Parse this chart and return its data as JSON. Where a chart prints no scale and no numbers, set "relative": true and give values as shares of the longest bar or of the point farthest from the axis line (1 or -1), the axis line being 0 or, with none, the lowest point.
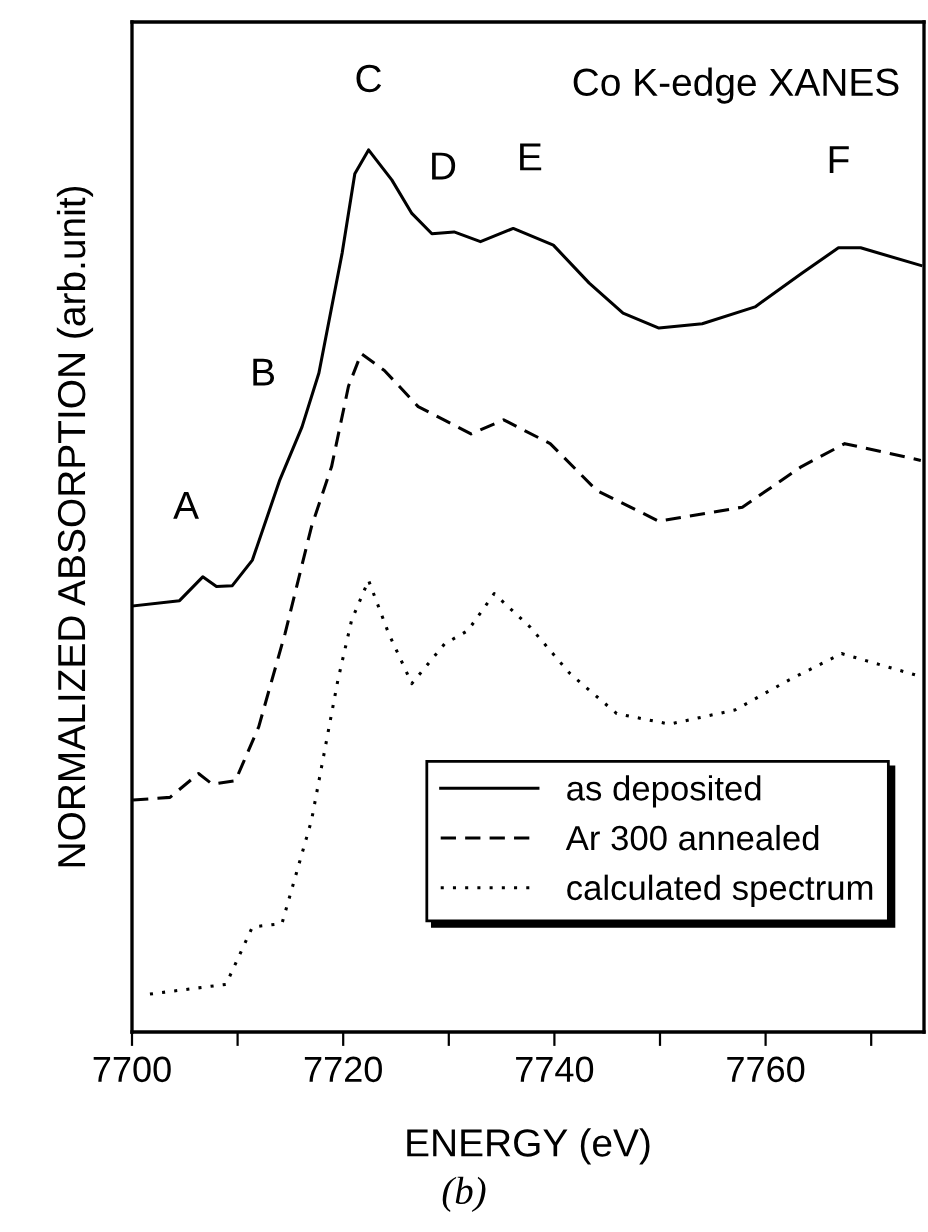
{
  "chart_data": {
    "type": "line",
    "relative": true,
    "xlabel": "ENERGY (eV)",
    "ylabel": "NORMALIZED ABSORPTION (arb.unit)",
    "xlim": [
      7700,
      7775
    ],
    "xticks": [
      7700,
      {
        "value": 7710,
        "label": null
      },
      7720,
      {
        "value": 7730,
        "label": null
      },
      7740,
      {
        "value": 7750,
        "label": null
      },
      7760,
      {
        "value": 7770,
        "label": null
      }
    ],
    "tick_labels": "x",
    "grid": false,
    "legend": "bottom right",
    "marker": "none",
    "series": [
      {
        "name": "as deposited",
        "color": "#000000",
        "line_style": "solid",
        "x": [
          7700.1,
          7704.5,
          7706.7,
          7708.0,
          7709.5,
          7711.4,
          7714.0,
          7716.1,
          7717.7,
          7719.9,
          7721.1,
          7722.4,
          7724.6,
          7726.5,
          7728.4,
          7730.5,
          7733.0,
          7736.1,
          7739.9,
          7743.3,
          7746.5,
          7749.9,
          7754.0,
          7759.0,
          7763.4,
          7766.9,
          7769.0,
          7774.7
        ],
        "values": [
          0.483,
          0.489,
          0.516,
          0.505,
          0.506,
          0.535,
          0.626,
          0.686,
          0.747,
          0.883,
          0.973,
          1.0,
          0.966,
          0.928,
          0.905,
          0.907,
          0.896,
          0.911,
          0.892,
          0.849,
          0.815,
          0.798,
          0.803,
          0.822,
          0.86,
          0.889,
          0.889,
          0.869
        ]
      },
      {
        "name": "Ar 300 annealed",
        "color": "#000000",
        "line_style": "dashed",
        "x": [
          7700.1,
          7703.6,
          7706.3,
          7707.6,
          7709.8,
          7712.0,
          7714.5,
          7717.0,
          7718.9,
          7720.5,
          7721.7,
          7723.9,
          7727.1,
          7732.1,
          7735.2,
          7739.6,
          7744.0,
          7749.9,
          7757.8,
          7763.4,
          7767.5,
          7774.7
        ],
        "values": [
          0.263,
          0.266,
          0.293,
          0.281,
          0.285,
          0.346,
          0.452,
          0.573,
          0.641,
          0.732,
          0.769,
          0.75,
          0.709,
          0.678,
          0.694,
          0.667,
          0.614,
          0.579,
          0.595,
          0.641,
          0.667,
          0.648
        ]
      },
      {
        "name": "calculated spectrum",
        "color": "#000000",
        "line_style": "dotted",
        "x": [
          7701.7,
          7708.9,
          7711.4,
          7714.2,
          7717.0,
          7719.5,
          7720.8,
          7722.4,
          7724.3,
          7726.5,
          7729.6,
          7731.8,
          7734.3,
          7737.7,
          7741.5,
          7745.9,
          7750.9,
          7757.1,
          7762.2,
          7767.2,
          7774.7
        ],
        "values": [
          0.043,
          0.054,
          0.119,
          0.123,
          0.24,
          0.399,
          0.467,
          0.512,
          0.452,
          0.395,
          0.44,
          0.455,
          0.497,
          0.459,
          0.406,
          0.361,
          0.349,
          0.365,
          0.399,
          0.429,
          0.403
        ]
      }
    ],
    "annotations": [
      {
        "text": "A",
        "x": 7706.7,
        "y": 0.516
      },
      {
        "text": "B",
        "x": 7716.1,
        "y": 0.686
      },
      {
        "text": "C",
        "x": 7722.4,
        "y": 1.0
      },
      {
        "text": "D",
        "x": 7730.5,
        "y": 0.907
      },
      {
        "text": "E",
        "x": 7736.1,
        "y": 0.911
      },
      {
        "text": "F",
        "x": 7766.9,
        "y": 0.889
      },
      "Co K-edge XANES",
      "(b)"
    ]
  }
}
